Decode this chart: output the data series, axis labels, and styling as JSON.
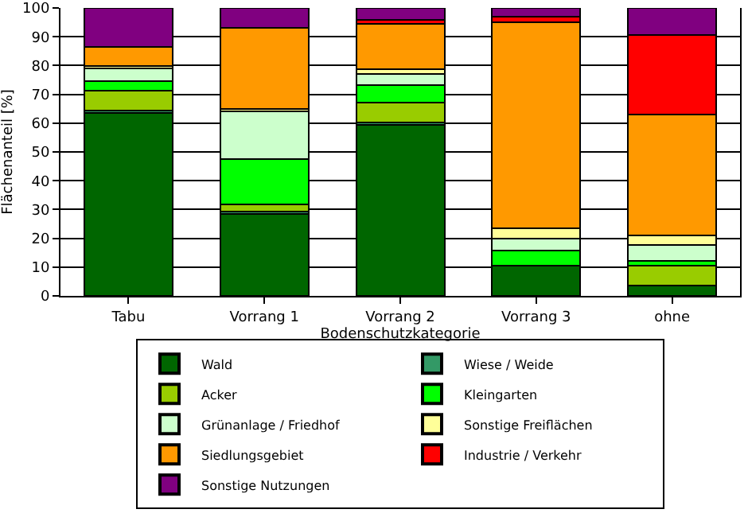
{
  "chart_data": {
    "type": "bar",
    "stacked": true,
    "xlabel": "Bodenschutzkategorie",
    "ylabel": "Flächenanteil [%]",
    "categories": [
      "Tabu",
      "Vorrang 1",
      "Vorrang 2",
      "Vorrang 3",
      "ohne"
    ],
    "series": [
      {
        "name": "Wald",
        "color": "#006600",
        "values": [
          63.6,
          28.4,
          59.5,
          10.5,
          3.7
        ]
      },
      {
        "name": "Wiese / Weide",
        "color": "#339966",
        "values": [
          0.8,
          0.9,
          0.8,
          0,
          0
        ]
      },
      {
        "name": "Acker",
        "color": "#99cc00",
        "values": [
          6.9,
          2.4,
          6.9,
          0,
          6.8
        ]
      },
      {
        "name": "Kleingarten",
        "color": "#00ff00",
        "values": [
          3.3,
          15.9,
          6.0,
          5.3,
          1.7
        ]
      },
      {
        "name": "Grünanlage / Friedhof",
        "color": "#ccffcc",
        "values": [
          4.3,
          16.4,
          3.8,
          4.1,
          5.6
        ]
      },
      {
        "name": "Sonstige Freiflächen",
        "color": "#ffff99",
        "values": [
          1.0,
          0.9,
          1.7,
          3.7,
          3.3
        ]
      },
      {
        "name": "Siedlungsgebiet",
        "color": "#ff9900",
        "values": [
          6.5,
          28.1,
          15.9,
          71.4,
          41.9
        ]
      },
      {
        "name": "Industrie / Verkehr",
        "color": "#ff0000",
        "values": [
          0,
          0,
          1.3,
          2.0,
          27.7
        ]
      },
      {
        "name": "Sonstige Nutzungen",
        "color": "#800080",
        "values": [
          13.6,
          7.0,
          4.1,
          3.0,
          9.3
        ]
      }
    ],
    "ylim": [
      0,
      100
    ],
    "yticks": [
      0,
      10,
      20,
      30,
      40,
      50,
      60,
      70,
      80,
      90,
      100
    ],
    "grid": "y",
    "legend": "bottom"
  }
}
